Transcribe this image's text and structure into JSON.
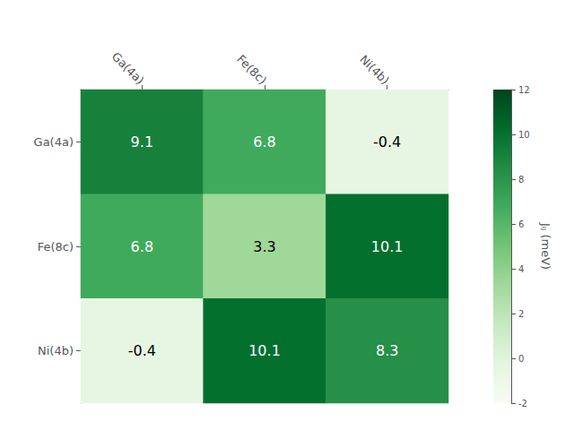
{
  "chart_data": {
    "type": "heatmap",
    "x_categories": [
      "Ga(4a)",
      "Fe(8c)",
      "Ni(4b)"
    ],
    "y_categories": [
      "Ga(4a)",
      "Fe(8c)",
      "Ni(4b)"
    ],
    "values": [
      [
        9.1,
        6.8,
        -0.4
      ],
      [
        6.8,
        3.3,
        10.1
      ],
      [
        -0.4,
        10.1,
        8.3
      ]
    ],
    "colorbar_label": "Jᵢⱼ (meV)",
    "colorbar_range": [
      -2,
      12
    ],
    "colorbar_ticks": [
      -2,
      0,
      2,
      4,
      6,
      8,
      10,
      12
    ],
    "colormap": [
      "#f7fcf5",
      "#e5f5e0",
      "#c7e9c0",
      "#a1d99b",
      "#74c476",
      "#41ab5d",
      "#238b45",
      "#006d2c",
      "#00441b"
    ],
    "data_labels": true
  }
}
